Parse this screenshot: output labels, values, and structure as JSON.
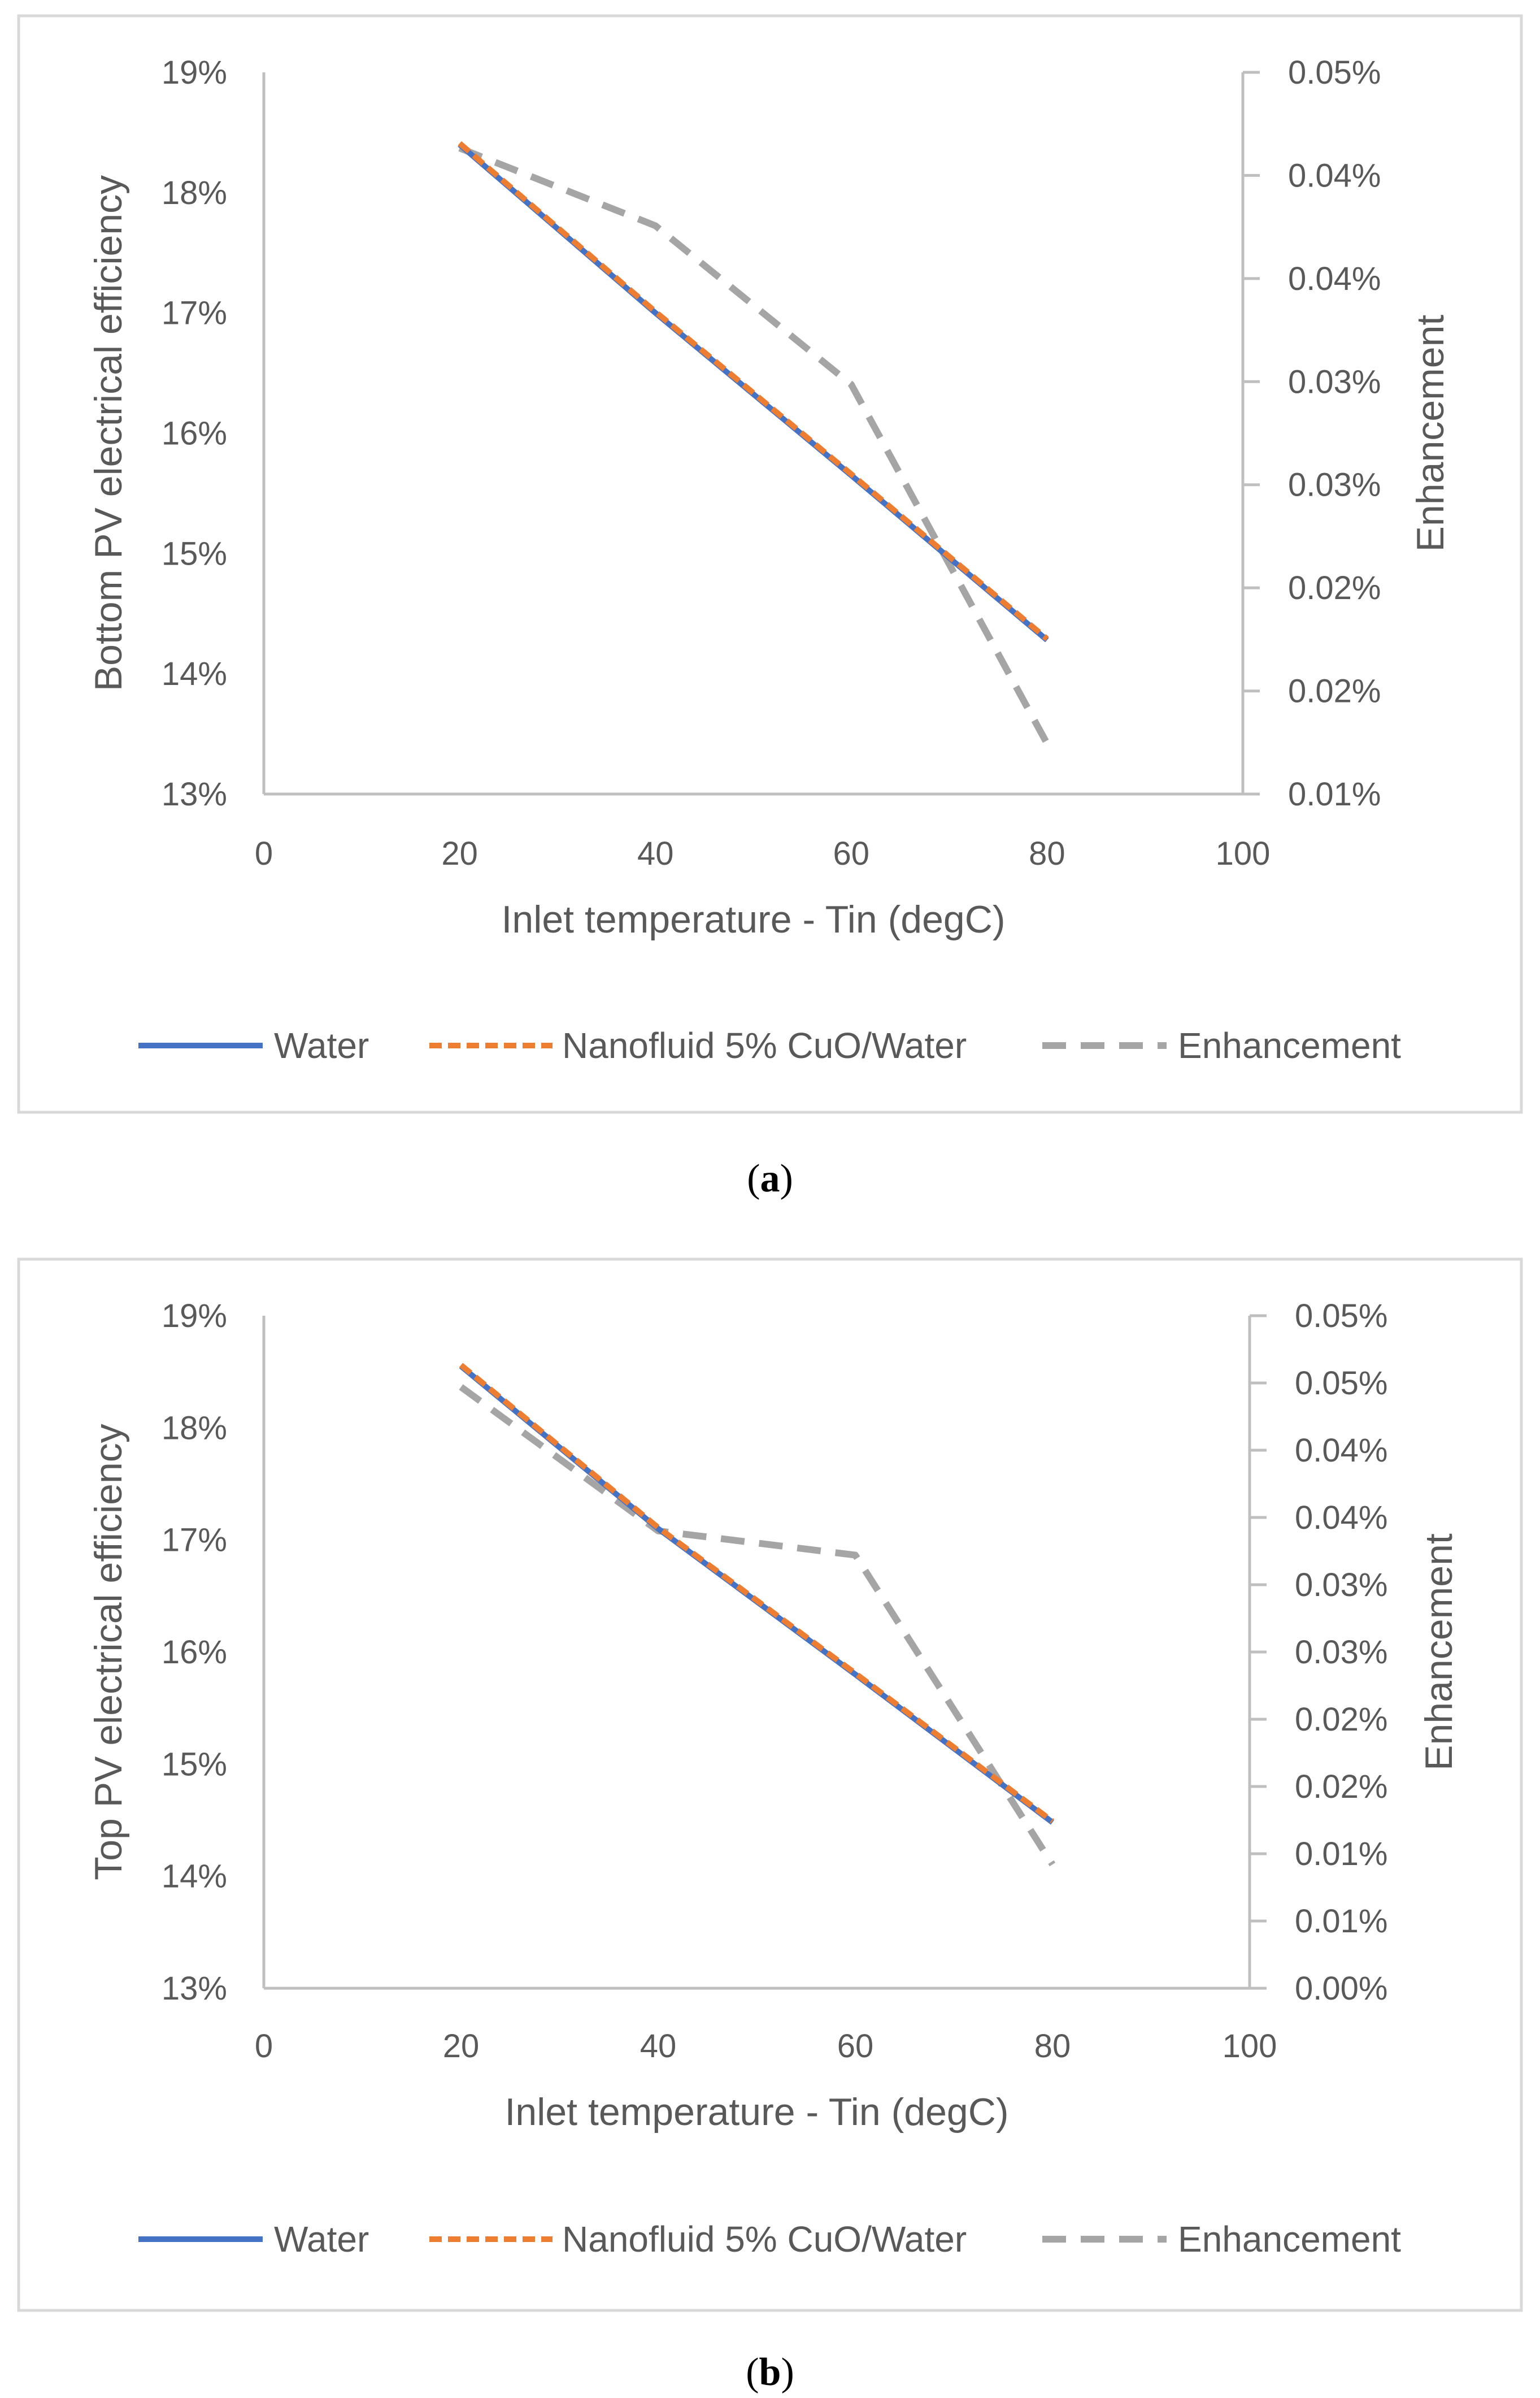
{
  "chart_data": [
    {
      "type": "line",
      "caption_letter": "a",
      "xlabel": "Inlet temperature - Tin (degC)",
      "ylabel": "Bottom  PV electrical efficiency",
      "y2label": "Enhancement",
      "xlim": [
        0,
        100
      ],
      "ylim": [
        13,
        19
      ],
      "y2lim": [
        0.01,
        0.05
      ],
      "x_ticks": [
        "0",
        "20",
        "40",
        "60",
        "80",
        "100"
      ],
      "y_ticks": [
        "13%",
        "14%",
        "15%",
        "16%",
        "17%",
        "18%",
        "19%"
      ],
      "y2_ticks": [
        "0.01%",
        "0.02%",
        "0.02%",
        "0.03%",
        "0.03%",
        "0.04%",
        "0.04%",
        "0.05%"
      ],
      "series": [
        {
          "name": "Water",
          "axis": "left",
          "color": "#4472C4",
          "x": [
            20,
            40,
            60,
            80
          ],
          "values": [
            18.4,
            17.0,
            15.65,
            14.28
          ]
        },
        {
          "name": "Nanofluid 5% CuO/Water",
          "axis": "left",
          "color": "#ED7D31",
          "x": [
            20,
            40,
            60,
            80
          ],
          "values": [
            18.41,
            17.01,
            15.66,
            14.29
          ]
        },
        {
          "name": "Enhancement",
          "axis": "right",
          "color": "#A5A5A5",
          "x": [
            20,
            40,
            60,
            80
          ],
          "values": [
            0.0458,
            0.0415,
            0.0327,
            0.0128
          ]
        }
      ]
    },
    {
      "type": "line",
      "caption_letter": "b",
      "xlabel": "Inlet temperature - Tin (degC)",
      "ylabel": "Top PV electrical efficiency",
      "y2label": "Enhancement",
      "xlim": [
        0,
        100
      ],
      "ylim": [
        13,
        19
      ],
      "y2lim": [
        0.0,
        0.05
      ],
      "x_ticks": [
        "0",
        "20",
        "40",
        "60",
        "80",
        "100"
      ],
      "y_ticks": [
        "13%",
        "14%",
        "15%",
        "16%",
        "17%",
        "18%",
        "19%"
      ],
      "y2_ticks": [
        "0.00%",
        "0.01%",
        "0.01%",
        "0.02%",
        "0.02%",
        "0.03%",
        "0.03%",
        "0.04%",
        "0.04%",
        "0.05%",
        "0.05%"
      ],
      "series": [
        {
          "name": "Water",
          "axis": "left",
          "color": "#4472C4",
          "x": [
            20,
            40,
            60,
            80
          ],
          "values": [
            18.55,
            17.1,
            15.8,
            14.48
          ]
        },
        {
          "name": "Nanofluid 5% CuO/Water",
          "axis": "left",
          "color": "#ED7D31",
          "x": [
            20,
            40,
            60,
            80
          ],
          "values": [
            18.56,
            17.11,
            15.81,
            14.49
          ]
        },
        {
          "name": "Enhancement",
          "axis": "right",
          "color": "#A5A5A5",
          "x": [
            20,
            40,
            60,
            80
          ],
          "values": [
            0.0447,
            0.034,
            0.0322,
            0.0092
          ]
        }
      ]
    }
  ]
}
